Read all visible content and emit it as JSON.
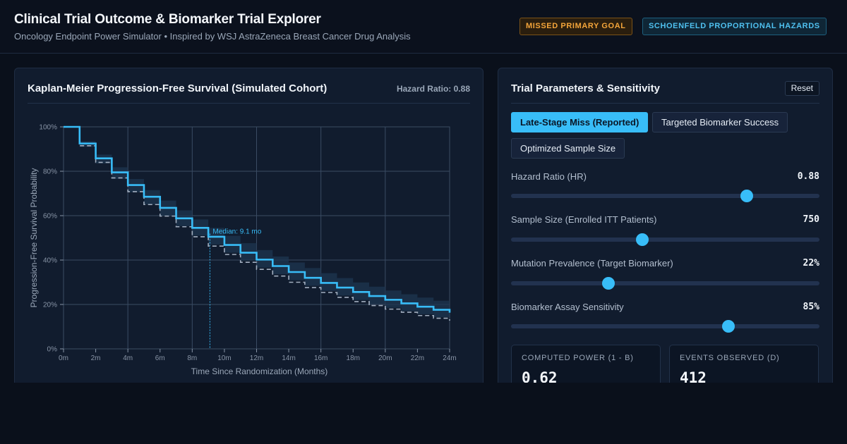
{
  "header": {
    "title": "Clinical Trial Outcome & Biomarker Trial Explorer",
    "subtitle": "Oncology Endpoint Power Simulator • Inspired by WSJ AstraZeneca Breast Cancer Drug Analysis",
    "badges": [
      "MISSED PRIMARY GOAL",
      "SCHOENFELD PROPORTIONAL HAZARDS"
    ]
  },
  "left_panel": {
    "title": "Kaplan-Meier Progression-Free Survival (Simulated Cohort)",
    "hazard_label": "Hazard Ratio: 0.88"
  },
  "chart_data": {
    "type": "line",
    "xlabel": "Time Since Randomization (Months)",
    "ylabel": "Progression-Free Survival Probability",
    "xlim": [
      0,
      24
    ],
    "ylim": [
      0,
      100
    ],
    "x_ticks": [
      "0m",
      "2m",
      "4m",
      "6m",
      "8m",
      "10m",
      "12m",
      "14m",
      "16m",
      "18m",
      "20m",
      "22m",
      "24m"
    ],
    "y_ticks": [
      "0%",
      "20%",
      "40%",
      "60%",
      "80%",
      "100%"
    ],
    "grid": true,
    "median_annotation": {
      "label": "Median: 9.1 mo",
      "x": 9.1,
      "y": 50
    },
    "series": [
      {
        "style": "treatment-solid",
        "x": [
          0,
          1,
          2,
          3,
          4,
          5,
          6,
          7,
          8,
          9,
          10,
          11,
          12,
          13,
          14,
          15,
          16,
          17,
          18,
          19,
          20,
          21,
          22,
          23,
          24
        ],
        "y": [
          100,
          92.5,
          85.8,
          79.5,
          73.8,
          68.5,
          63.5,
          58.8,
          54.5,
          50.5,
          46.8,
          43.3,
          40.2,
          37.3,
          34.6,
          32,
          29.7,
          27.6,
          25.6,
          23.8,
          22.1,
          20.5,
          19,
          17.6,
          16.3
        ]
      },
      {
        "style": "control-dashed",
        "x": [
          0,
          1,
          2,
          3,
          4,
          5,
          6,
          7,
          8,
          9,
          10,
          11,
          12,
          13,
          14,
          15,
          16,
          17,
          18,
          19,
          20,
          21,
          22,
          23,
          24
        ],
        "y": [
          100,
          91.5,
          84,
          77,
          70.8,
          65,
          59.8,
          55,
          50.5,
          46.3,
          42.5,
          39,
          35.8,
          32.8,
          30,
          27.6,
          25.4,
          23.2,
          21.3,
          19.5,
          17.9,
          16.5,
          15,
          13.8,
          12.7
        ]
      },
      {
        "style": "confidence-band",
        "x": [
          0,
          1,
          2,
          3,
          4,
          5,
          6,
          7,
          8,
          9,
          10,
          11,
          12,
          13,
          14,
          15,
          16,
          17,
          18,
          19,
          20,
          21,
          22,
          23,
          24
        ],
        "upper": [
          100,
          93.5,
          87.5,
          81.8,
          76.5,
          71.5,
          66.8,
          62.4,
          58.3,
          54.5,
          50.9,
          47.6,
          44.5,
          41.6,
          38.9,
          36.4,
          34.1,
          31.9,
          29.9,
          28,
          26.3,
          24.6,
          23.1,
          21.7,
          20.5
        ],
        "lower": [
          100,
          91,
          83.5,
          76.5,
          70.5,
          65,
          60,
          55.3,
          51,
          47,
          43.3,
          39.8,
          36.6,
          33.6,
          30.9,
          28.4,
          26.1,
          24,
          22,
          20.2,
          18.5,
          17,
          15.6,
          14.3,
          13.2
        ]
      }
    ]
  },
  "right_panel": {
    "title": "Trial Parameters & Sensitivity",
    "reset_label": "Reset",
    "scenarios": [
      "Late-Stage Miss (Reported)",
      "Targeted Biomarker Success",
      "Optimized Sample Size"
    ],
    "params": [
      {
        "label": "Hazard Ratio (HR)",
        "value": "0.88",
        "fraction": 0.765
      },
      {
        "label": "Sample Size (Enrolled ITT Patients)",
        "value": "750",
        "fraction": 0.425
      },
      {
        "label": "Mutation Prevalence (Target Biomarker)",
        "value": "22%",
        "fraction": 0.316
      },
      {
        "label": "Biomarker Assay Sensitivity",
        "value": "85%",
        "fraction": 0.705
      }
    ],
    "metrics": [
      {
        "label": "COMPUTED POWER (1 - B)",
        "value": "0.62"
      },
      {
        "label": "EVENTS OBSERVED (D)",
        "value": "412"
      }
    ]
  },
  "colors": {
    "accent": "#38bdf8",
    "warning": "#f4a53a",
    "control": "#9aa7b8",
    "panel": "#111c2e"
  }
}
